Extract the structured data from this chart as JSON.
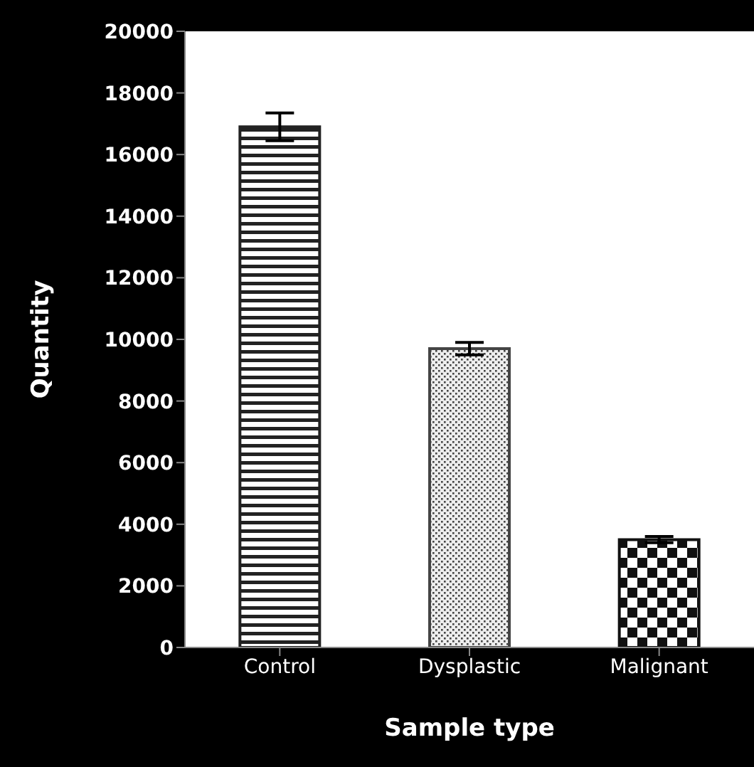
{
  "chart_data": {
    "type": "bar",
    "xlabel": "Sample type",
    "ylabel": "Quantity",
    "categories": [
      "Control",
      "Dysplastic",
      "Malignant"
    ],
    "values": [
      16900,
      9700,
      3500
    ],
    "errors": [
      450,
      200,
      100
    ],
    "colors": [
      "#222222",
      "#444444",
      "#111111"
    ],
    "ylim": [
      0,
      20000
    ],
    "yticks": [
      0,
      2000,
      4000,
      6000,
      8000,
      10000,
      12000,
      14000,
      16000,
      18000,
      20000
    ],
    "grid": false,
    "legend": false
  }
}
